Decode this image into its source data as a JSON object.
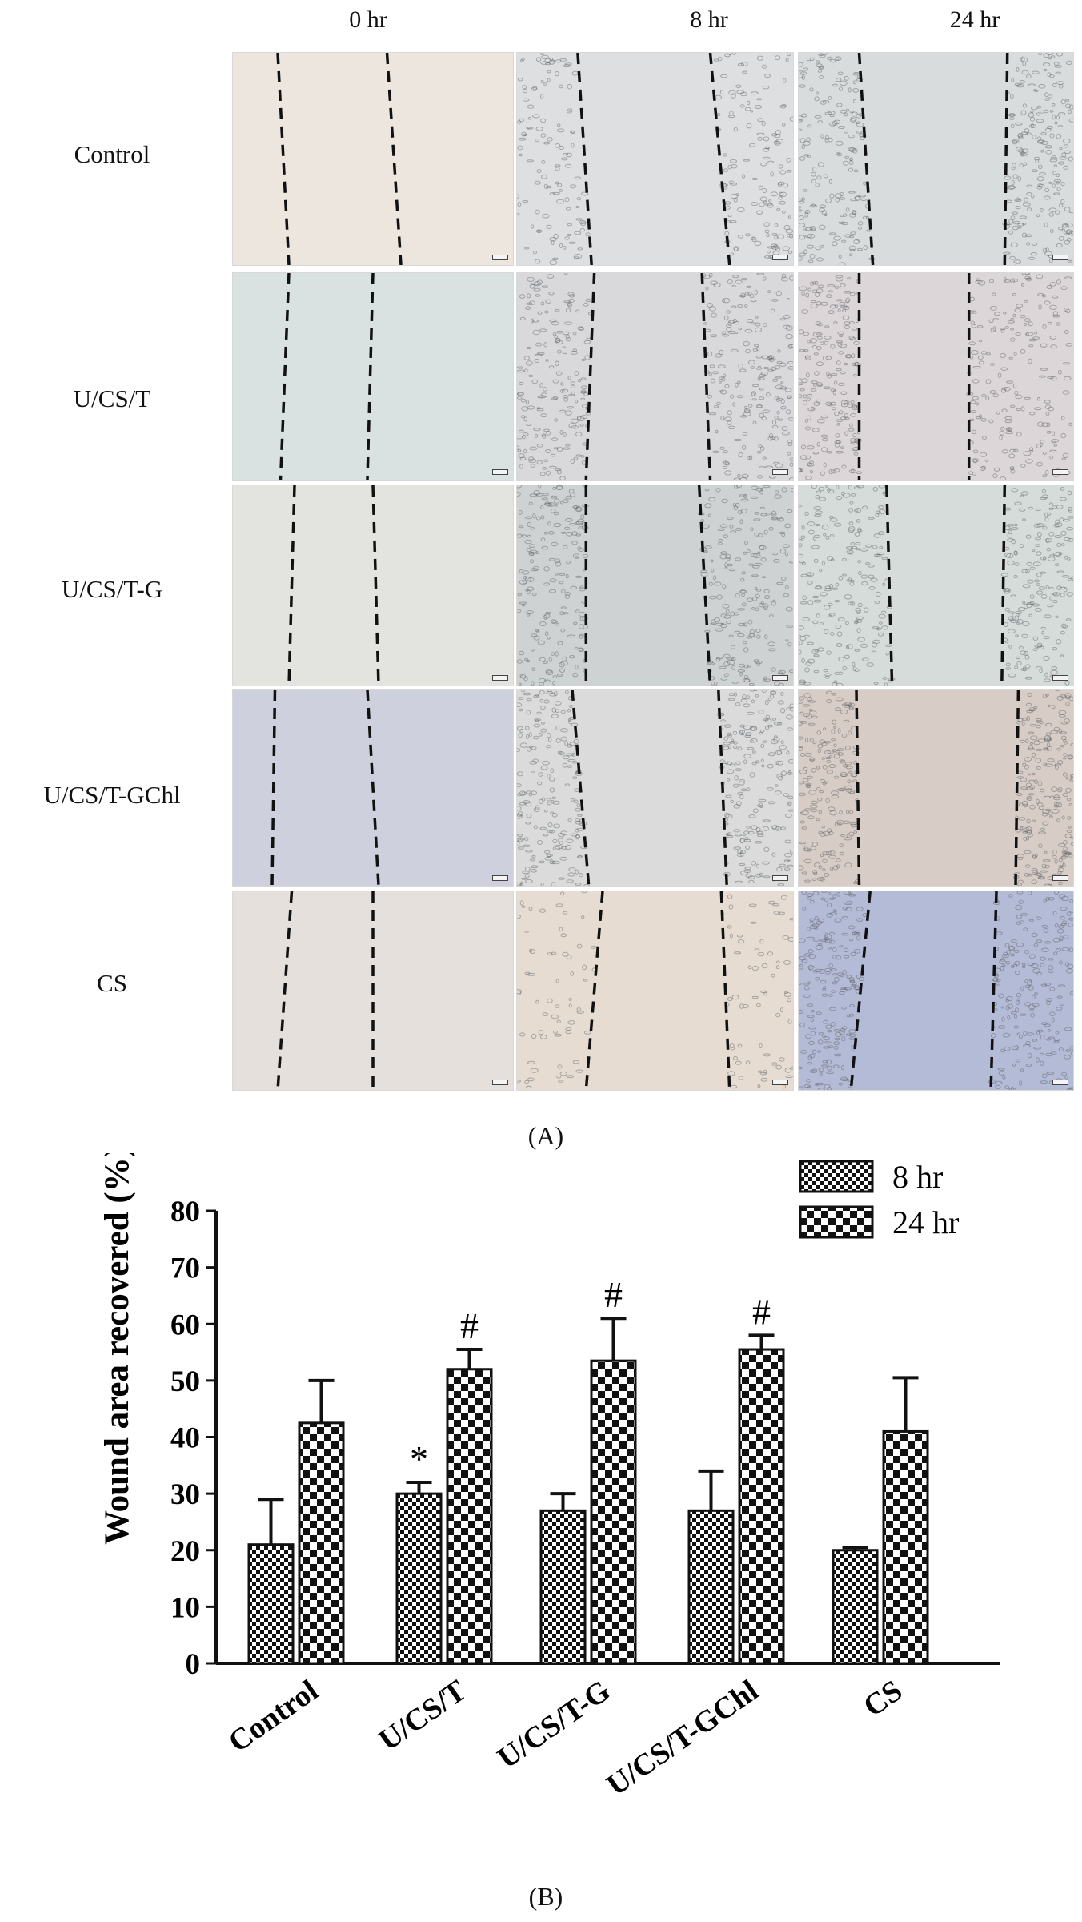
{
  "figure_a": {
    "caption": "(A)",
    "columns": [
      "0 hr",
      "8 hr",
      "24 hr"
    ],
    "rows": [
      {
        "label": "Control",
        "tints": [
          "#ece6df",
          "#dedfe0",
          "#d9dcdd"
        ],
        "cell_density": [
          0,
          2,
          3
        ]
      },
      {
        "label": "U/CS/T",
        "tints": [
          "#d9e1e1",
          "#d9d9dc",
          "#dcd6d8"
        ],
        "cell_density": [
          0,
          3,
          3
        ]
      },
      {
        "label": "U/CS/T-G",
        "tints": [
          "#e3e3df",
          "#cfd2d2",
          "#d6dcd9"
        ],
        "cell_density": [
          0,
          3,
          3
        ]
      },
      {
        "label": "U/CS/T-GChl",
        "tints": [
          "#cfd0dd",
          "#dadbda",
          "#d8cdc6"
        ],
        "cell_density": [
          0,
          3,
          3
        ]
      },
      {
        "label": "CS",
        "tints": [
          "#e6e0dc",
          "#e6dcd2",
          "#b4bbd6"
        ],
        "cell_density": [
          0,
          1,
          3
        ]
      }
    ]
  },
  "figure_b": {
    "caption": "(B)"
  },
  "chart_data": {
    "type": "bar",
    "title": "",
    "xlabel": "",
    "ylabel": "Wound area recovered (%)",
    "ylim": [
      0,
      80
    ],
    "yticks": [
      0,
      10,
      20,
      30,
      40,
      50,
      60,
      70,
      80
    ],
    "categories": [
      "Control",
      "U/CS/T",
      "U/CS/T-G",
      "U/CS/T-GChl",
      "CS"
    ],
    "series": [
      {
        "name": "8 hr",
        "values": [
          21,
          30,
          27,
          27,
          20
        ],
        "errors": [
          8,
          2,
          3,
          7,
          0.5
        ],
        "annotations": [
          "",
          "*",
          "",
          "",
          ""
        ]
      },
      {
        "name": "24 hr",
        "values": [
          42.5,
          52,
          53.5,
          55.5,
          41
        ],
        "errors": [
          7.5,
          3.5,
          7.5,
          2.5,
          9.5
        ],
        "annotations": [
          "",
          "#",
          "#",
          "#",
          ""
        ]
      }
    ],
    "legend": "top-right"
  }
}
